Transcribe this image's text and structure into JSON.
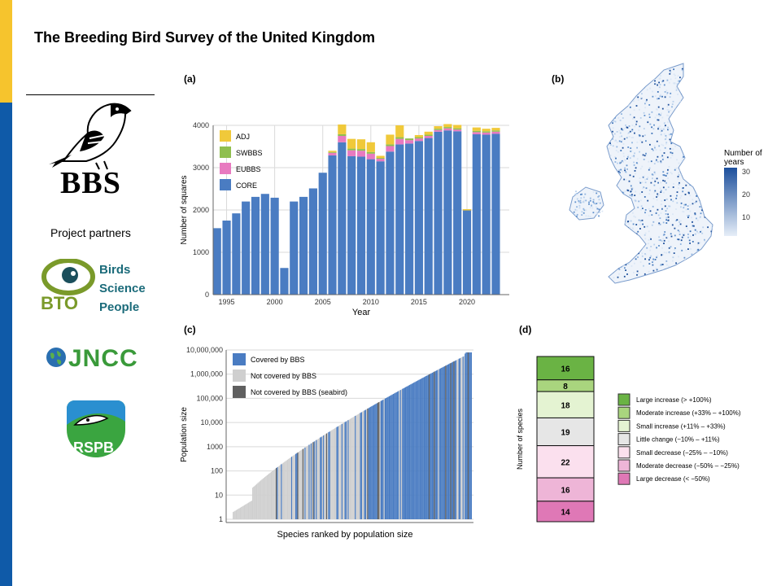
{
  "page": {
    "title": "The Breeding Bird Survey of the United Kingdom"
  },
  "logos": {
    "bbs": "BBS",
    "partners_label": "Project partners",
    "bto": {
      "acronym": "BTO",
      "words": [
        "Birds",
        "Science",
        "People"
      ]
    },
    "jncc": "JNCC",
    "rspb": "RSPB"
  },
  "panel_labels": {
    "a": "(a)",
    "b": "(b)",
    "c": "(c)",
    "d": "(d)"
  },
  "colors": {
    "core": "#4a7cc2",
    "eubbs": "#e87ac0",
    "swbbs": "#8fbf4f",
    "adj": "#f0c93a",
    "grey_light": "#cfcfcf",
    "grey_dark": "#5f5f5f",
    "brand_yellow": "#f6c42d",
    "brand_blue": "#0f5aa8"
  },
  "chart_data": [
    {
      "id": "a",
      "type": "bar",
      "stacked": true,
      "xlabel": "Year",
      "ylabel": "Number of squares",
      "ylim": [
        0,
        4000
      ],
      "yticks": [
        0,
        1000,
        2000,
        3000,
        4000
      ],
      "xticks": [
        1995,
        2000,
        2005,
        2010,
        2015,
        2020
      ],
      "legend": [
        "ADJ",
        "SWBBS",
        "EUBBS",
        "CORE"
      ],
      "legend_position": "top-left",
      "categories": [
        1994,
        1995,
        1996,
        1997,
        1998,
        1999,
        2000,
        2001,
        2002,
        2003,
        2004,
        2005,
        2006,
        2007,
        2008,
        2009,
        2010,
        2011,
        2012,
        2013,
        2014,
        2015,
        2016,
        2017,
        2018,
        2019,
        2020,
        2021,
        2022,
        2023
      ],
      "series": [
        {
          "name": "CORE",
          "values": [
            1570,
            1750,
            1920,
            2200,
            2310,
            2380,
            2290,
            630,
            2200,
            2310,
            2510,
            2880,
            3290,
            3600,
            3270,
            3260,
            3200,
            3150,
            3380,
            3550,
            3570,
            3630,
            3700,
            3850,
            3880,
            3860,
            1990,
            3790,
            3780,
            3800
          ]
        },
        {
          "name": "EUBBS",
          "values": [
            0,
            0,
            0,
            0,
            0,
            0,
            0,
            0,
            0,
            0,
            0,
            0,
            60,
            150,
            140,
            140,
            130,
            60,
            130,
            130,
            80,
            60,
            50,
            40,
            50,
            40,
            0,
            50,
            50,
            50
          ]
        },
        {
          "name": "SWBBS",
          "values": [
            0,
            0,
            0,
            0,
            0,
            0,
            0,
            0,
            0,
            0,
            0,
            0,
            20,
            40,
            40,
            40,
            40,
            20,
            40,
            40,
            40,
            30,
            30,
            30,
            30,
            30,
            0,
            30,
            30,
            30
          ]
        },
        {
          "name": "ADJ",
          "values": [
            0,
            0,
            0,
            0,
            0,
            0,
            0,
            0,
            0,
            0,
            0,
            0,
            30,
            230,
            230,
            230,
            230,
            50,
            230,
            280,
            0,
            50,
            70,
            60,
            70,
            80,
            30,
            80,
            60,
            60
          ]
        }
      ]
    },
    {
      "id": "b",
      "type": "heatmap",
      "legend_title": "Number of years",
      "legend_ticks": [
        10,
        20,
        30
      ],
      "color_range": [
        "#e6eef8",
        "#1c4f9c"
      ]
    },
    {
      "id": "c",
      "type": "bar",
      "log_scale": true,
      "xlabel": "Species ranked by population size",
      "ylabel": "Population size",
      "ytick_labels": [
        "1",
        "10",
        "100",
        "1000",
        "10,000",
        "100,000",
        "1,000,000",
        "10,000,000"
      ],
      "legend": [
        "Covered by BBS",
        "Not covered by BBS",
        "Not covered by BBS (seabird)"
      ],
      "legend_position": "top-left",
      "n_species": 233,
      "log10_min": 0.3,
      "log10_max": 6.9
    },
    {
      "id": "d",
      "type": "bar",
      "stacked": true,
      "ylabel": "Number of species",
      "categories": [
        "Large increase (> +100%)",
        "Moderate increase (+33% – +100%)",
        "Small increase (+11% – +33%)",
        "Little change (−10% – +11%)",
        "Small decrease (−25% – −10%)",
        "Moderate decrease (−50% – −25%)",
        "Large decrease (< −50%)"
      ],
      "values": [
        16,
        8,
        18,
        19,
        22,
        16,
        14
      ],
      "colors": [
        "#6ab344",
        "#a9d57e",
        "#e4f3d2",
        "#e6e6e6",
        "#fbe0ee",
        "#eeb5d7",
        "#df78b6"
      ]
    }
  ]
}
